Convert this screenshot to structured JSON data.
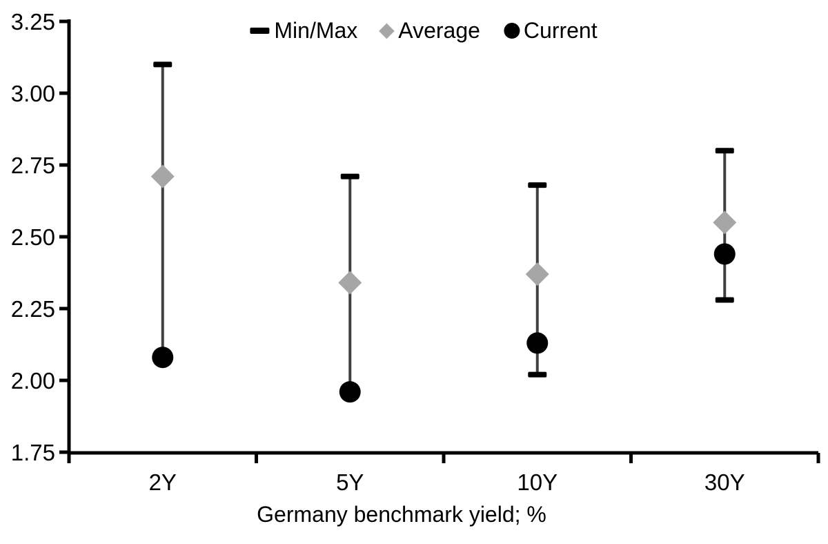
{
  "chart_data": {
    "type": "scatter",
    "title": "",
    "xlabel": "Germany benchmark yield; %",
    "ylabel": "",
    "categories": [
      "2Y",
      "5Y",
      "10Y",
      "30Y"
    ],
    "y_ticks": [
      "3.25",
      "3.00",
      "2.75",
      "2.50",
      "2.25",
      "2.00",
      "1.75"
    ],
    "ylim": [
      1.75,
      3.25
    ],
    "grid": false,
    "legend_position": "top-center",
    "series": [
      {
        "name": "Min/Max",
        "type": "range",
        "marker": "dash",
        "min": [
          2.08,
          1.96,
          2.02,
          2.28
        ],
        "max": [
          3.1,
          2.71,
          2.68,
          2.8
        ]
      },
      {
        "name": "Average",
        "type": "point",
        "marker": "diamond",
        "values": [
          2.71,
          2.34,
          2.37,
          2.55
        ]
      },
      {
        "name": "Current",
        "type": "point",
        "marker": "circle",
        "values": [
          2.08,
          1.96,
          2.13,
          2.44
        ]
      }
    ],
    "colors": {
      "range_cap": "#000000",
      "range_line": "#404040",
      "average": "#a6a6a6",
      "current": "#000000",
      "axis": "#000000",
      "background": "#ffffff"
    }
  },
  "legend": {
    "items": [
      {
        "label": "Min/Max",
        "icon": "dash-icon"
      },
      {
        "label": "Average",
        "icon": "diamond-icon"
      },
      {
        "label": "Current",
        "icon": "circle-icon"
      }
    ]
  }
}
